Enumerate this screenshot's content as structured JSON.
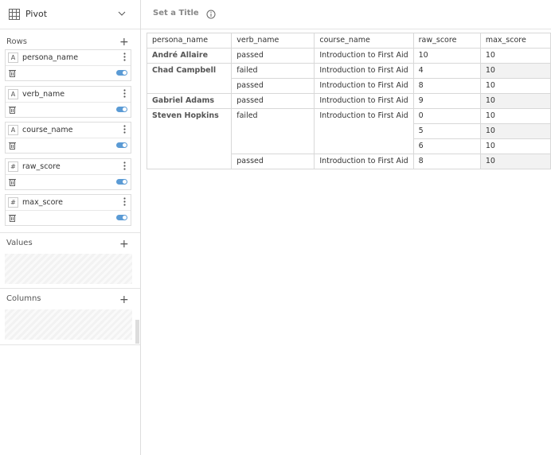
{
  "sidebar": {
    "title": "Pivot",
    "rows": {
      "label": "Rows",
      "fields": [
        {
          "icon": "A",
          "name": "persona_name"
        },
        {
          "icon": "A",
          "name": "verb_name"
        },
        {
          "icon": "A",
          "name": "course_name"
        },
        {
          "icon": "#",
          "name": "raw_score"
        },
        {
          "icon": "#",
          "name": "max_score"
        }
      ]
    },
    "values": {
      "label": "Values"
    },
    "columns": {
      "label": "Columns"
    }
  },
  "header": {
    "title": "Set a Title"
  },
  "table": {
    "columns": [
      "persona_name",
      "verb_name",
      "course_name",
      "raw_score",
      "max_score"
    ],
    "rows": [
      [
        "André Allaire",
        "passed",
        "Introduction to First Aid",
        10,
        10
      ],
      [
        "Chad Campbell",
        "failed",
        "Introduction to First Aid",
        4,
        10
      ],
      [
        null,
        "passed",
        "Introduction to First Aid",
        8,
        10
      ],
      [
        "Gabriel Adams",
        "passed",
        "Introduction to First Aid",
        9,
        10
      ],
      [
        "Steven Hopkins",
        "failed",
        "Introduction to First Aid",
        0,
        10
      ],
      [
        null,
        null,
        null,
        5,
        10
      ],
      [
        null,
        null,
        null,
        6,
        10
      ],
      [
        null,
        "passed",
        "Introduction to First Aid",
        8,
        10
      ]
    ]
  }
}
